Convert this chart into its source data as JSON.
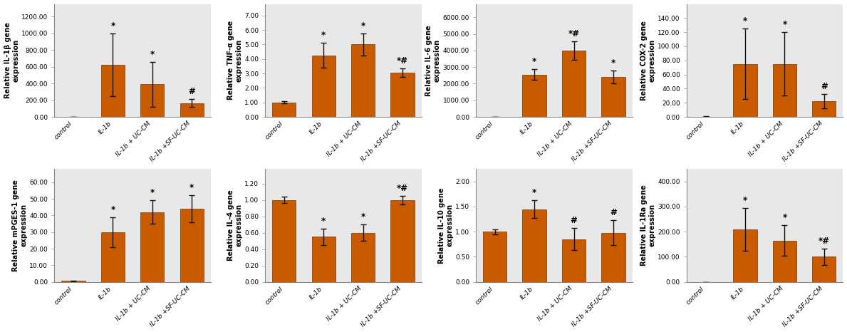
{
  "plots": [
    {
      "ylabel": "Relative IL-1β gene\nexpression",
      "values": [
        0,
        625,
        390,
        165
      ],
      "errors": [
        0,
        375,
        270,
        45
      ],
      "yticks": [
        0,
        200,
        400,
        600,
        800,
        1000,
        1200
      ],
      "ylim": [
        0,
        1350
      ],
      "annotations": [
        "",
        "*",
        "*",
        "#"
      ],
      "row": 0,
      "col": 0
    },
    {
      "ylabel": "Relative TNF-α gene\nexpression",
      "values": [
        1.0,
        4.25,
        5.0,
        3.05
      ],
      "errors": [
        0.08,
        0.85,
        0.75,
        0.28
      ],
      "yticks": [
        0,
        1,
        2,
        3,
        4,
        5,
        6,
        7
      ],
      "ylim": [
        0,
        7.8
      ],
      "annotations": [
        "",
        "*",
        "*",
        "*#"
      ],
      "row": 0,
      "col": 1
    },
    {
      "ylabel": "Relative IL-6 gene\nexpression",
      "values": [
        0,
        2550,
        4000,
        2400
      ],
      "errors": [
        0,
        310,
        550,
        380
      ],
      "yticks": [
        0,
        1000,
        2000,
        3000,
        4000,
        5000,
        6000
      ],
      "ylim": [
        0,
        6800
      ],
      "annotations": [
        "",
        "*",
        "*#",
        "*"
      ],
      "row": 0,
      "col": 2
    },
    {
      "ylabel": "Relative COX-2 gene\nexpression",
      "values": [
        0.5,
        75,
        75,
        22
      ],
      "errors": [
        0.3,
        50,
        45,
        10
      ],
      "yticks": [
        0,
        20,
        40,
        60,
        80,
        100,
        120,
        140
      ],
      "ylim": [
        0,
        160
      ],
      "annotations": [
        "",
        "*",
        "*",
        "#"
      ],
      "row": 0,
      "col": 3
    },
    {
      "ylabel": "Relative mPGES-1 gene\nexpression",
      "values": [
        0.5,
        30,
        42,
        44
      ],
      "errors": [
        0.3,
        9,
        7,
        8
      ],
      "yticks": [
        0,
        10,
        20,
        30,
        40,
        50,
        60
      ],
      "ylim": [
        0,
        68
      ],
      "annotations": [
        "",
        "*",
        "*",
        "*"
      ],
      "row": 1,
      "col": 0
    },
    {
      "ylabel": "Relative IL-4 gene\nexpression",
      "values": [
        1.0,
        0.55,
        0.6,
        1.0
      ],
      "errors": [
        0.04,
        0.1,
        0.1,
        0.05
      ],
      "yticks": [
        0,
        0.2,
        0.4,
        0.6,
        0.8,
        1.0,
        1.2
      ],
      "ylim": [
        0,
        1.38
      ],
      "annotations": [
        "",
        "*",
        "*",
        "*#"
      ],
      "row": 1,
      "col": 1
    },
    {
      "ylabel": "Relative IL-10 gene\nexpression",
      "values": [
        1.0,
        1.45,
        0.85,
        0.98
      ],
      "errors": [
        0.05,
        0.18,
        0.22,
        0.25
      ],
      "yticks": [
        0,
        0.5,
        1.0,
        1.5,
        2.0
      ],
      "ylim": [
        0,
        2.25
      ],
      "annotations": [
        "",
        "*",
        "#",
        "#"
      ],
      "row": 1,
      "col": 2
    },
    {
      "ylabel": "Relative IL-1Ra gene\nexpression",
      "values": [
        0,
        210,
        165,
        100
      ],
      "errors": [
        0,
        85,
        60,
        32
      ],
      "yticks": [
        0,
        100,
        200,
        300,
        400
      ],
      "ylim": [
        0,
        450
      ],
      "annotations": [
        "",
        "*",
        "*",
        "*#"
      ],
      "row": 1,
      "col": 3
    }
  ],
  "categories": [
    "control",
    "IL-1b",
    "IL-1b + UC-CM",
    "IL-1b +SF-UC-CM"
  ],
  "bar_color": "#C85A00",
  "bar_edge_color": "#7A3500",
  "error_color": "#111111",
  "bar_width": 0.6,
  "figsize": [
    11.89,
    4.66
  ],
  "dpi": 100,
  "bg_color": "#E8E8E8",
  "fig_bg": "#FFFFFF"
}
